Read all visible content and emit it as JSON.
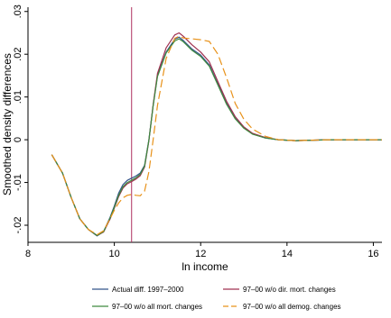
{
  "chart_data": {
    "type": "line",
    "xlabel": "ln income",
    "ylabel": "Smoothed density differences",
    "xlim": [
      8,
      16.2
    ],
    "ylim": [
      -0.024,
      0.031
    ],
    "xticks": [
      "8",
      "10",
      "12",
      "14",
      "16"
    ],
    "yticks": [
      "-.02",
      "-.01",
      "0",
      ".01",
      ".02",
      ".03"
    ],
    "xtick_values": [
      8,
      10,
      12,
      14,
      16
    ],
    "ytick_values": [
      -0.02,
      -0.01,
      0,
      0.01,
      0.02,
      0.03
    ],
    "grid": false,
    "legend_position": "bottom",
    "reference_line": {
      "x": 10.4,
      "color": "#b03060"
    },
    "series": [
      {
        "name": "Actual diff. 1997–2000",
        "color": "#33538a",
        "dash": "solid",
        "points": [
          [
            8.55,
            -0.0035
          ],
          [
            8.8,
            -0.0078
          ],
          [
            9.0,
            -0.0135
          ],
          [
            9.2,
            -0.0185
          ],
          [
            9.4,
            -0.021
          ],
          [
            9.6,
            -0.0225
          ],
          [
            9.75,
            -0.0215
          ],
          [
            9.9,
            -0.0182
          ],
          [
            10.0,
            -0.0155
          ],
          [
            10.1,
            -0.0125
          ],
          [
            10.2,
            -0.0105
          ],
          [
            10.3,
            -0.0095
          ],
          [
            10.4,
            -0.009
          ],
          [
            10.5,
            -0.0085
          ],
          [
            10.6,
            -0.0078
          ],
          [
            10.7,
            -0.006
          ],
          [
            10.8,
            0.0
          ],
          [
            10.9,
            0.008
          ],
          [
            11.0,
            0.015
          ],
          [
            11.2,
            0.0205
          ],
          [
            11.4,
            0.0235
          ],
          [
            11.5,
            0.024
          ],
          [
            11.6,
            0.0232
          ],
          [
            11.8,
            0.0212
          ],
          [
            12.0,
            0.0198
          ],
          [
            12.2,
            0.0175
          ],
          [
            12.4,
            0.013
          ],
          [
            12.6,
            0.0085
          ],
          [
            12.8,
            0.005
          ],
          [
            13.0,
            0.0028
          ],
          [
            13.2,
            0.0014
          ],
          [
            13.5,
            0.0004
          ],
          [
            13.8,
            0.0
          ],
          [
            14.2,
            -0.0002
          ],
          [
            15.0,
            0.0
          ],
          [
            16.2,
            0.0
          ]
        ]
      },
      {
        "name": "97–00 w/o dir. mort. changes",
        "color": "#a03050",
        "dash": "solid",
        "points": [
          [
            8.55,
            -0.0035
          ],
          [
            8.8,
            -0.0078
          ],
          [
            9.0,
            -0.0135
          ],
          [
            9.2,
            -0.0185
          ],
          [
            9.4,
            -0.021
          ],
          [
            9.6,
            -0.0224
          ],
          [
            9.75,
            -0.0216
          ],
          [
            9.9,
            -0.0186
          ],
          [
            10.0,
            -0.016
          ],
          [
            10.1,
            -0.0133
          ],
          [
            10.2,
            -0.0113
          ],
          [
            10.3,
            -0.0103
          ],
          [
            10.4,
            -0.0098
          ],
          [
            10.5,
            -0.0092
          ],
          [
            10.6,
            -0.0084
          ],
          [
            10.7,
            -0.0064
          ],
          [
            10.8,
            -0.0002
          ],
          [
            10.9,
            0.0082
          ],
          [
            11.0,
            0.0155
          ],
          [
            11.2,
            0.0215
          ],
          [
            11.4,
            0.0245
          ],
          [
            11.5,
            0.025
          ],
          [
            11.6,
            0.0242
          ],
          [
            11.8,
            0.0222
          ],
          [
            12.0,
            0.0205
          ],
          [
            12.2,
            0.0182
          ],
          [
            12.4,
            0.0136
          ],
          [
            12.6,
            0.009
          ],
          [
            12.8,
            0.0054
          ],
          [
            13.0,
            0.003
          ],
          [
            13.2,
            0.0015
          ],
          [
            13.5,
            0.0005
          ],
          [
            13.8,
            0.0
          ],
          [
            14.2,
            -0.0002
          ],
          [
            15.0,
            0.0
          ],
          [
            16.2,
            0.0
          ]
        ]
      },
      {
        "name": "97–00 w/o all mort. changes",
        "color": "#3e8a3e",
        "dash": "solid",
        "points": [
          [
            8.55,
            -0.0035
          ],
          [
            8.8,
            -0.0078
          ],
          [
            9.0,
            -0.0135
          ],
          [
            9.2,
            -0.0185
          ],
          [
            9.4,
            -0.021
          ],
          [
            9.6,
            -0.0224
          ],
          [
            9.75,
            -0.0215
          ],
          [
            9.9,
            -0.0184
          ],
          [
            10.0,
            -0.0158
          ],
          [
            10.1,
            -0.013
          ],
          [
            10.2,
            -0.011
          ],
          [
            10.3,
            -0.01
          ],
          [
            10.4,
            -0.0095
          ],
          [
            10.5,
            -0.0089
          ],
          [
            10.6,
            -0.0081
          ],
          [
            10.7,
            -0.0062
          ],
          [
            10.8,
            -0.0001
          ],
          [
            10.9,
            0.0079
          ],
          [
            11.0,
            0.0148
          ],
          [
            11.2,
            0.0203
          ],
          [
            11.4,
            0.0231
          ],
          [
            11.5,
            0.0236
          ],
          [
            11.6,
            0.0229
          ],
          [
            11.8,
            0.0209
          ],
          [
            12.0,
            0.0195
          ],
          [
            12.2,
            0.0172
          ],
          [
            12.4,
            0.0128
          ],
          [
            12.6,
            0.0083
          ],
          [
            12.8,
            0.0049
          ],
          [
            13.0,
            0.0027
          ],
          [
            13.2,
            0.0013
          ],
          [
            13.5,
            0.0004
          ],
          [
            13.8,
            0.0
          ],
          [
            14.2,
            -0.0002
          ],
          [
            15.0,
            0.0
          ],
          [
            16.2,
            0.0
          ]
        ]
      },
      {
        "name": "97–00 w/o all demog. changes",
        "color": "#e8921a",
        "dash": "long",
        "points": [
          [
            8.55,
            -0.0035
          ],
          [
            8.8,
            -0.0078
          ],
          [
            9.0,
            -0.0135
          ],
          [
            9.2,
            -0.0185
          ],
          [
            9.4,
            -0.021
          ],
          [
            9.6,
            -0.0222
          ],
          [
            9.75,
            -0.0213
          ],
          [
            9.9,
            -0.0185
          ],
          [
            10.0,
            -0.0165
          ],
          [
            10.1,
            -0.0148
          ],
          [
            10.2,
            -0.0136
          ],
          [
            10.3,
            -0.013
          ],
          [
            10.4,
            -0.0128
          ],
          [
            10.5,
            -0.013
          ],
          [
            10.6,
            -0.0131
          ],
          [
            10.7,
            -0.012
          ],
          [
            10.8,
            -0.0075
          ],
          [
            10.9,
            0.0
          ],
          [
            11.0,
            0.008
          ],
          [
            11.2,
            0.019
          ],
          [
            11.4,
            0.0237
          ],
          [
            11.5,
            0.0242
          ],
          [
            11.6,
            0.0238
          ],
          [
            11.8,
            0.0236
          ],
          [
            12.0,
            0.0234
          ],
          [
            12.2,
            0.023
          ],
          [
            12.4,
            0.02
          ],
          [
            12.6,
            0.0145
          ],
          [
            12.8,
            0.0085
          ],
          [
            13.0,
            0.0048
          ],
          [
            13.2,
            0.0025
          ],
          [
            13.5,
            0.0008
          ],
          [
            13.8,
            0.0
          ],
          [
            14.2,
            -0.0002
          ],
          [
            15.0,
            0.0
          ],
          [
            16.2,
            0.0
          ]
        ]
      }
    ]
  }
}
